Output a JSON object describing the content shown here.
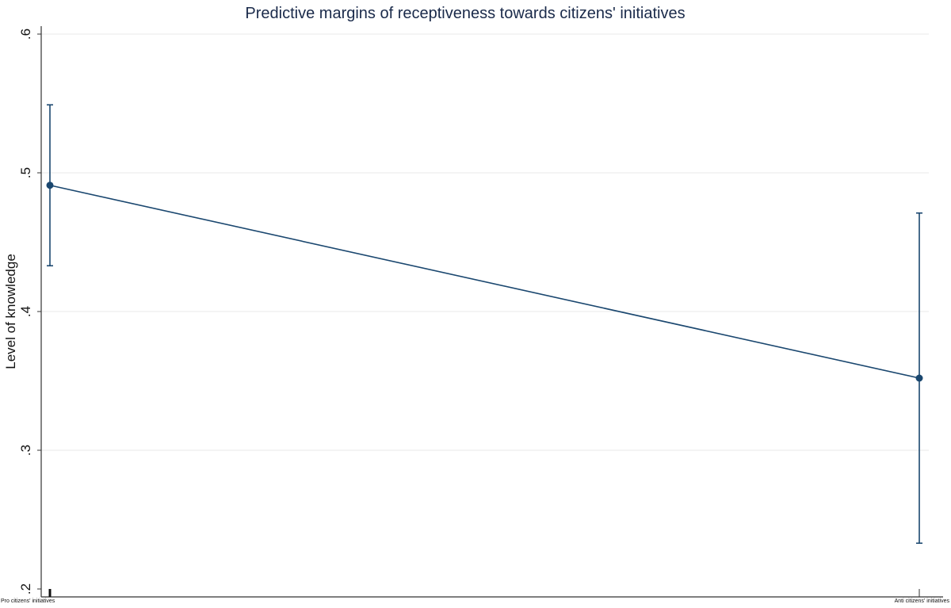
{
  "chart_data": {
    "type": "line",
    "title": "Predictive margins of receptiveness towards citizens' initiatives",
    "xlabel": "",
    "ylabel": "Level of knowledge",
    "categories": [
      "Pro citizens' initiatives",
      "Anti citizens' initiatives"
    ],
    "series": [
      {
        "values": [
          0.491,
          0.352
        ],
        "ci_lower": [
          0.433,
          0.233
        ],
        "ci_upper": [
          0.549,
          0.471
        ]
      }
    ],
    "ylim": [
      0.2,
      0.6
    ],
    "yticks": [
      0.2,
      0.3,
      0.4,
      0.5,
      0.6
    ],
    "ytick_labels": [
      ".2",
      ".3",
      ".4",
      ".5",
      ".6"
    ],
    "grid": true,
    "colors": {
      "line": "#1a476f",
      "grid": "#eaeaea",
      "axis": "#333333"
    }
  }
}
